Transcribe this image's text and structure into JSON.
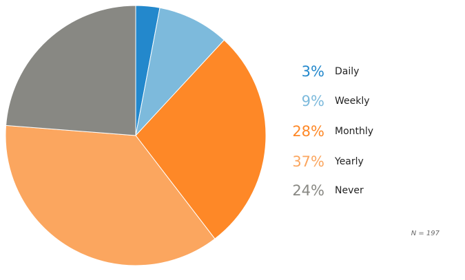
{
  "chart_data": {
    "type": "pie",
    "categories": [
      "Daily",
      "Weekly",
      "Monthly",
      "Yearly",
      "Never"
    ],
    "values": [
      3,
      9,
      28,
      37,
      24
    ],
    "value_labels": [
      "3%",
      "9%",
      "28%",
      "37%",
      "24%"
    ],
    "colors": [
      "#2388cc",
      "#7dbadc",
      "#fe8827",
      "#fba65f",
      "#888883"
    ],
    "start": "12 o'clock",
    "direction": "clockwise",
    "legend_position": "right",
    "note": "N = 197"
  }
}
